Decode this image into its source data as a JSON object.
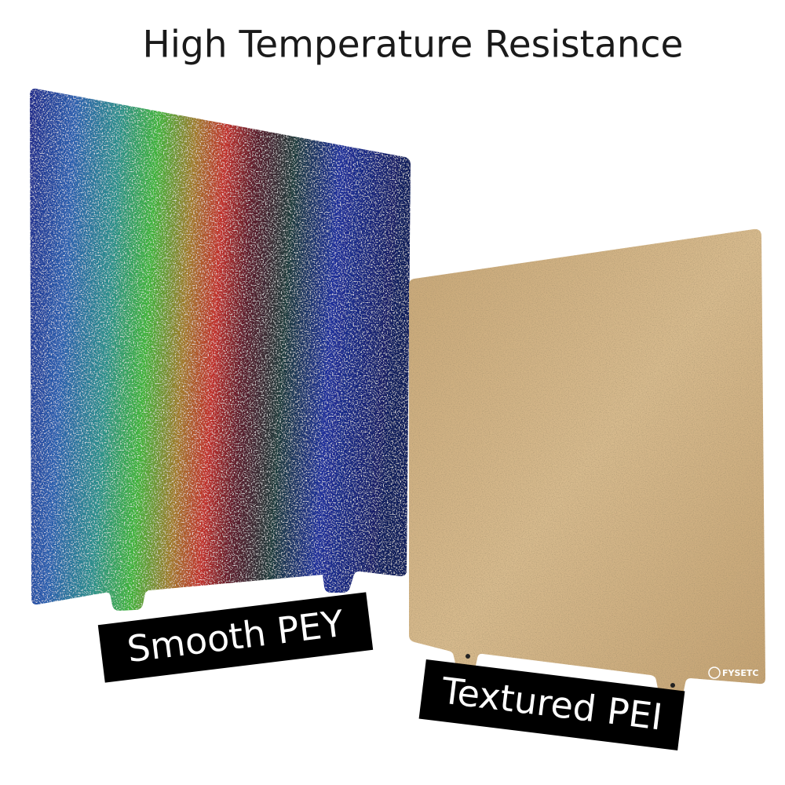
{
  "title": "High Temperature Resistance",
  "products": [
    {
      "label": "Smooth PEY"
    },
    {
      "label": "Textured PEI",
      "brand": "FYSETC"
    }
  ]
}
